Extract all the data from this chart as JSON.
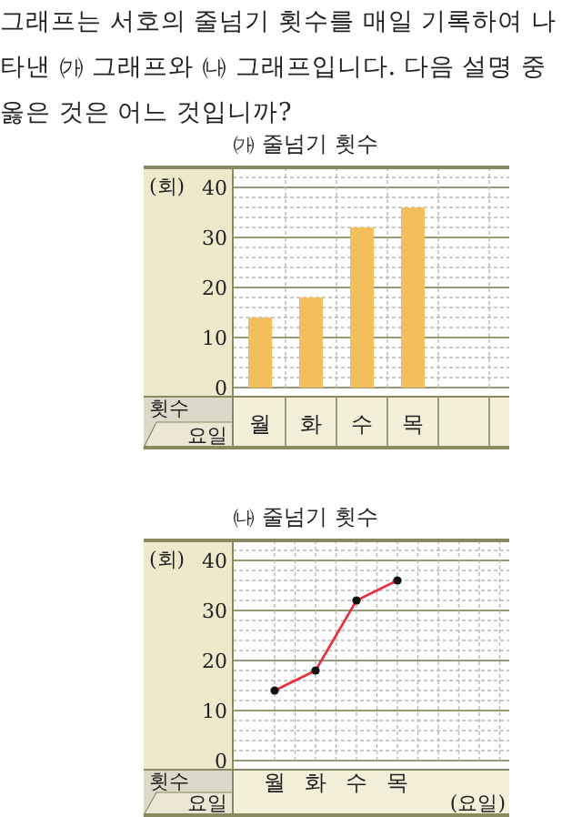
{
  "chart_data": [
    {
      "type": "bar",
      "title": "㈎ 줄넘기 횟수",
      "ylabel": "(회)",
      "xlabel": "요일",
      "annotations": [
        "그래프는 서호의 줄넘기 횟수를 매일 기록하여 나타낸 ㈎ 그래프와 ㈏ 그래프입니다. 다음 설명 중 옳은 것은 어느 것입니까?",
        "횟수"
      ],
      "categories": [
        "월",
        "화",
        "수",
        "목"
      ],
      "values": [
        14,
        18,
        32,
        36
      ],
      "color": "#f3bf5c",
      "ylim": [
        0,
        44
      ],
      "yticks": [
        0,
        10,
        20,
        30,
        40
      ],
      "grid": true
    },
    {
      "type": "line",
      "title": "㈏ 줄넘기 횟수",
      "ylabel": "(회)",
      "xlabel": "요일",
      "annotations": [
        "횟수",
        "(요일)"
      ],
      "categories": [
        "월",
        "화",
        "수",
        "목"
      ],
      "values": [
        14,
        18,
        32,
        36
      ],
      "color": "#e8303c",
      "marker": "circle",
      "ylim": [
        0,
        44
      ],
      "yticks": [
        0,
        10,
        20,
        30,
        40
      ],
      "grid": true
    }
  ]
}
